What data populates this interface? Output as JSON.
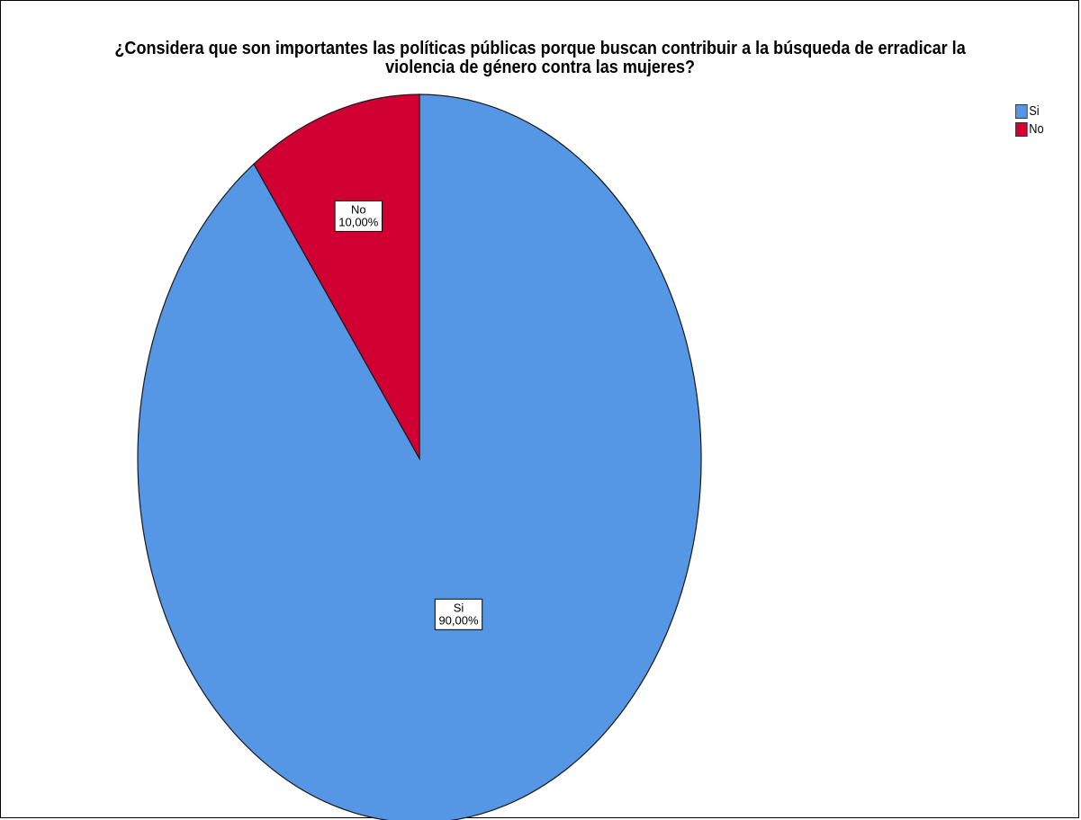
{
  "chart_data": {
    "type": "pie",
    "title_lines": [
      "¿Considera que son importantes las políticas públicas porque buscan contribuir a la búsqueda de erradicar la",
      "violencia de género contra las mujeres?"
    ],
    "slices": [
      {
        "name": "Si",
        "value": 90.0,
        "label_value": "90,00%",
        "color": "#5596e5"
      },
      {
        "name": "No",
        "value": 10.0,
        "label_value": "10,00%",
        "color": "#d00032"
      }
    ],
    "start_angle_deg": 0,
    "direction": "clockwise",
    "legend_position": "top-right"
  }
}
